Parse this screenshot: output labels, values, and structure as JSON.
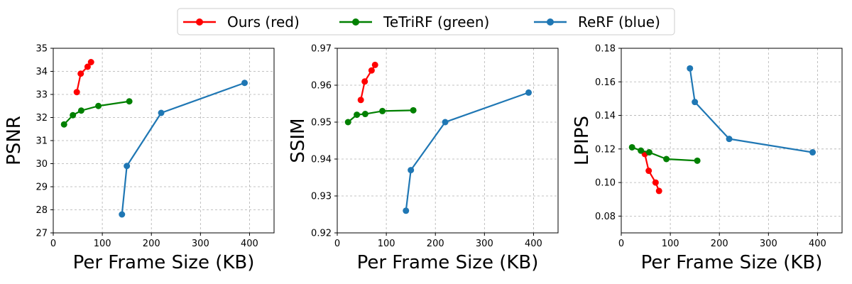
{
  "legend": [
    {
      "label": "Ours (red)",
      "color": "#ff0000"
    },
    {
      "label": "TeTriRF (green)",
      "color": "#008000"
    },
    {
      "label": "ReRF (blue)",
      "color": "#1f77b4"
    }
  ],
  "chart_data": [
    {
      "type": "line",
      "xlabel": "Per Frame Size (KB)",
      "ylabel": "PSNR",
      "xlim": [
        0,
        450
      ],
      "ylim": [
        27,
        35
      ],
      "xticks": [
        0,
        100,
        200,
        300,
        400
      ],
      "yticks": [
        27,
        28,
        29,
        30,
        31,
        32,
        33,
        34,
        35
      ],
      "grid": true,
      "series": [
        {
          "name": "Ours (red)",
          "color": "#ff0000",
          "x": [
            48,
            56,
            70,
            77
          ],
          "y": [
            33.1,
            33.9,
            34.2,
            34.4
          ]
        },
        {
          "name": "TeTriRF (green)",
          "color": "#008000",
          "x": [
            22,
            40,
            57,
            92,
            155
          ],
          "y": [
            31.7,
            32.1,
            32.3,
            32.5,
            32.7
          ]
        },
        {
          "name": "ReRF (blue)",
          "color": "#1f77b4",
          "x": [
            140,
            150,
            220,
            390
          ],
          "y": [
            27.8,
            29.9,
            32.2,
            33.5
          ]
        }
      ]
    },
    {
      "type": "line",
      "xlabel": "Per Frame Size (KB)",
      "ylabel": "SSIM",
      "xlim": [
        0,
        450
      ],
      "ylim": [
        0.92,
        0.97
      ],
      "xticks": [
        0,
        100,
        200,
        300,
        400
      ],
      "yticks": [
        0.92,
        0.93,
        0.94,
        0.95,
        0.96,
        0.97
      ],
      "grid": true,
      "series": [
        {
          "name": "Ours (red)",
          "color": "#ff0000",
          "x": [
            48,
            56,
            70,
            77
          ],
          "y": [
            0.956,
            0.961,
            0.964,
            0.9655
          ]
        },
        {
          "name": "TeTriRF (green)",
          "color": "#008000",
          "x": [
            22,
            40,
            57,
            92,
            155
          ],
          "y": [
            0.95,
            0.952,
            0.9522,
            0.953,
            0.9532
          ]
        },
        {
          "name": "ReRF (blue)",
          "color": "#1f77b4",
          "x": [
            140,
            150,
            220,
            390
          ],
          "y": [
            0.926,
            0.937,
            0.95,
            0.958
          ]
        }
      ]
    },
    {
      "type": "line",
      "xlabel": "Per Frame Size (KB)",
      "ylabel": "LPIPS",
      "xlim": [
        0,
        450
      ],
      "ylim": [
        0.07,
        0.18
      ],
      "xticks": [
        0,
        100,
        200,
        300,
        400
      ],
      "yticks": [
        0.08,
        0.1,
        0.12,
        0.14,
        0.16,
        0.18
      ],
      "grid": true,
      "series": [
        {
          "name": "Ours (red)",
          "color": "#ff0000",
          "x": [
            48,
            56,
            70,
            77
          ],
          "y": [
            0.117,
            0.107,
            0.1,
            0.095
          ]
        },
        {
          "name": "TeTriRF (green)",
          "color": "#008000",
          "x": [
            22,
            40,
            57,
            92,
            155
          ],
          "y": [
            0.121,
            0.119,
            0.118,
            0.114,
            0.113
          ]
        },
        {
          "name": "ReRF (blue)",
          "color": "#1f77b4",
          "x": [
            140,
            150,
            220,
            390
          ],
          "y": [
            0.168,
            0.148,
            0.126,
            0.118
          ]
        }
      ]
    }
  ]
}
